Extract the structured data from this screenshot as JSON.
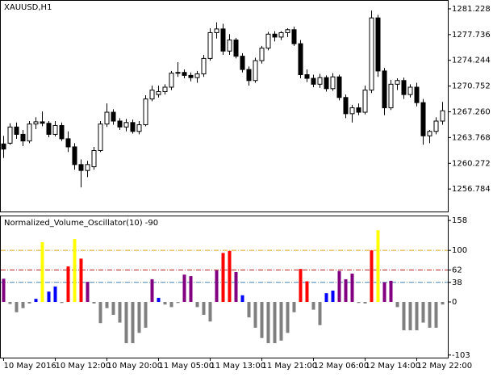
{
  "chart_data": [
    {
      "type": "candlestick",
      "title": "XAUUSD,H1",
      "open": [
        1262.9,
        1263.0,
        1265.2,
        1264.2,
        1263.3,
        1265.6,
        1265.9,
        1265.7,
        1264.2,
        1265.4,
        1263.6,
        1262.5,
        1260.1,
        1259.3,
        1259.8,
        1262.0,
        1265.6,
        1267.2,
        1266.0,
        1265.2,
        1265.8,
        1264.6,
        1265.5,
        1269.0,
        1269.6,
        1270.0,
        1270.6,
        1272.5,
        1272.6,
        1272.2,
        1271.9,
        1272.4,
        1274.5,
        1278.0,
        1278.5,
        1275.5,
        1277.0,
        1274.8,
        1273.0,
        1271.5,
        1274.2,
        1275.9,
        1277.8,
        1277.4,
        1278.0,
        1278.4,
        1276.5,
        1272.3,
        1271.8,
        1271.0,
        1271.9,
        1270.4,
        1272.0,
        1269.2,
        1267.0,
        1267.8,
        1267.2,
        1270.2,
        1280.0,
        1272.8,
        1267.8,
        1271.0,
        1271.5,
        1269.6,
        1270.6,
        1268.5,
        1264.0,
        1264.6,
        1266.0
      ],
      "high": [
        1264.0,
        1265.7,
        1265.8,
        1264.8,
        1266.0,
        1266.5,
        1267.3,
        1266.0,
        1266.0,
        1265.8,
        1264.6,
        1263.0,
        1260.8,
        1260.6,
        1262.5,
        1266.0,
        1268.4,
        1267.6,
        1266.4,
        1266.3,
        1266.2,
        1266.0,
        1269.5,
        1270.8,
        1270.8,
        1271.0,
        1272.8,
        1274.0,
        1273.0,
        1272.6,
        1272.8,
        1275.0,
        1278.6,
        1279.4,
        1279.2,
        1277.8,
        1277.3,
        1275.2,
        1273.4,
        1274.6,
        1276.2,
        1278.1,
        1278.2,
        1278.2,
        1278.6,
        1278.8,
        1277.0,
        1273.0,
        1272.3,
        1272.4,
        1272.2,
        1272.5,
        1272.3,
        1269.6,
        1268.2,
        1268.4,
        1270.8,
        1281.0,
        1280.4,
        1273.2,
        1271.6,
        1271.8,
        1271.9,
        1271.0,
        1271.2,
        1269.0,
        1264.8,
        1266.5,
        1268.6
      ],
      "low": [
        1261.0,
        1262.8,
        1263.6,
        1262.6,
        1263.0,
        1264.9,
        1265.3,
        1263.8,
        1263.9,
        1263.3,
        1261.8,
        1259.4,
        1257.0,
        1258.4,
        1259.4,
        1261.8,
        1265.2,
        1265.5,
        1264.8,
        1264.6,
        1264.3,
        1264.2,
        1265.3,
        1268.7,
        1269.2,
        1269.6,
        1270.2,
        1272.0,
        1271.8,
        1271.4,
        1271.2,
        1272.0,
        1274.2,
        1277.2,
        1275.0,
        1275.0,
        1274.5,
        1272.6,
        1270.8,
        1271.2,
        1273.8,
        1275.6,
        1276.8,
        1277.0,
        1277.4,
        1276.2,
        1271.8,
        1271.3,
        1270.6,
        1270.5,
        1270.0,
        1270.1,
        1268.8,
        1266.4,
        1265.8,
        1266.8,
        1266.9,
        1269.8,
        1272.0,
        1266.8,
        1267.5,
        1270.2,
        1269.0,
        1269.2,
        1268.0,
        1262.8,
        1263.0,
        1264.2,
        1265.5
      ],
      "close": [
        1262.2,
        1265.2,
        1264.2,
        1263.3,
        1265.6,
        1265.9,
        1265.7,
        1264.2,
        1265.4,
        1263.6,
        1262.5,
        1260.1,
        1259.3,
        1260.1,
        1262.0,
        1265.6,
        1267.2,
        1266.0,
        1265.2,
        1265.8,
        1264.6,
        1265.5,
        1269.0,
        1270.2,
        1270.0,
        1270.6,
        1272.5,
        1272.6,
        1272.2,
        1271.9,
        1272.4,
        1274.5,
        1278.0,
        1278.5,
        1275.5,
        1277.0,
        1274.8,
        1273.0,
        1271.5,
        1274.2,
        1275.9,
        1277.8,
        1277.4,
        1278.0,
        1278.4,
        1276.5,
        1272.3,
        1271.8,
        1271.0,
        1271.9,
        1270.4,
        1272.0,
        1269.2,
        1267.0,
        1267.8,
        1267.2,
        1270.2,
        1280.0,
        1272.8,
        1267.8,
        1271.0,
        1271.5,
        1269.6,
        1270.6,
        1268.5,
        1264.0,
        1264.6,
        1266.0,
        1267.4
      ],
      "up_color": "#ffffff",
      "down_color": "#000000",
      "ylim": [
        1253.73,
        1282.32
      ],
      "yticks": [
        1256.784,
        1260.272,
        1263.768,
        {
          "value": 1267.26,
          "label": "1267.260"
        },
        1270.752,
        1274.244,
        1277.736,
        1281.228
      ]
    },
    {
      "type": "bar",
      "title": "Normalized_Volume_Oscillator(10) -90",
      "categories": [
        "10 May 2016",
        null,
        null,
        null,
        null,
        null,
        null,
        null,
        "10 May 12:00",
        null,
        null,
        null,
        null,
        null,
        null,
        null,
        "10 May 20:00",
        null,
        null,
        null,
        null,
        null,
        null,
        null,
        "11 May 05:00",
        null,
        null,
        null,
        null,
        null,
        null,
        null,
        "11 May 13:00",
        null,
        null,
        null,
        null,
        null,
        null,
        null,
        "11 May 21:00",
        null,
        null,
        null,
        null,
        null,
        null,
        null,
        "12 May 06:00",
        null,
        null,
        null,
        null,
        null,
        null,
        null,
        "12 May 14:00",
        null,
        null,
        null,
        null,
        null,
        null,
        null,
        "12 May 22:00",
        null,
        null,
        null,
        null
      ],
      "values": [
        45,
        -4,
        -20,
        -12,
        -3,
        6,
        116,
        20,
        30,
        -2,
        69,
        122,
        84,
        39,
        -3,
        -41,
        -12,
        -25,
        -40,
        -80,
        -80,
        -60,
        -50,
        44,
        8,
        -5,
        -10,
        -2,
        53,
        50,
        -10,
        -25,
        -38,
        61,
        95,
        99,
        58,
        13,
        -30,
        -50,
        -70,
        -80,
        -80,
        -75,
        -60,
        -20,
        64,
        40,
        -15,
        -45,
        17,
        22,
        60,
        44,
        55,
        -2,
        -3,
        100,
        139,
        38,
        41,
        -10,
        -55,
        -55,
        -55,
        -40,
        -50,
        -50,
        -5
      ],
      "colors": [
        "#800080",
        "#808080",
        "#808080",
        "#808080",
        "#808080",
        "#0000ff",
        "#ffff00",
        "#0000ff",
        "#0000ff",
        "#808080",
        "#ff0000",
        "#ffff00",
        "#ff0000",
        "#800080",
        "#808080",
        "#808080",
        "#808080",
        "#808080",
        "#808080",
        "#808080",
        "#808080",
        "#808080",
        "#808080",
        "#800080",
        "#0000ff",
        "#808080",
        "#808080",
        "#808080",
        "#800080",
        "#800080",
        "#808080",
        "#808080",
        "#808080",
        "#800080",
        "#ff0000",
        "#ff0000",
        "#800080",
        "#0000ff",
        "#808080",
        "#808080",
        "#808080",
        "#808080",
        "#808080",
        "#808080",
        "#808080",
        "#808080",
        "#ff0000",
        "#ff0000",
        "#808080",
        "#808080",
        "#0000ff",
        "#0000ff",
        "#800080",
        "#800080",
        "#800080",
        "#808080",
        "#808080",
        "#ff0000",
        "#ffff00",
        "#800080",
        "#800080",
        "#808080",
        "#808080",
        "#808080",
        "#808080",
        "#808080",
        "#808080",
        "#808080",
        "#808080"
      ],
      "levels": [
        {
          "value": 100,
          "color": "#daa520"
        },
        {
          "value": 62,
          "color": "#b22222"
        },
        {
          "value": 38,
          "color": "#4682b4"
        }
      ],
      "ylim": [
        -108,
        166
      ],
      "yticks": [
        -103,
        0,
        38,
        62,
        100,
        158
      ]
    }
  ]
}
